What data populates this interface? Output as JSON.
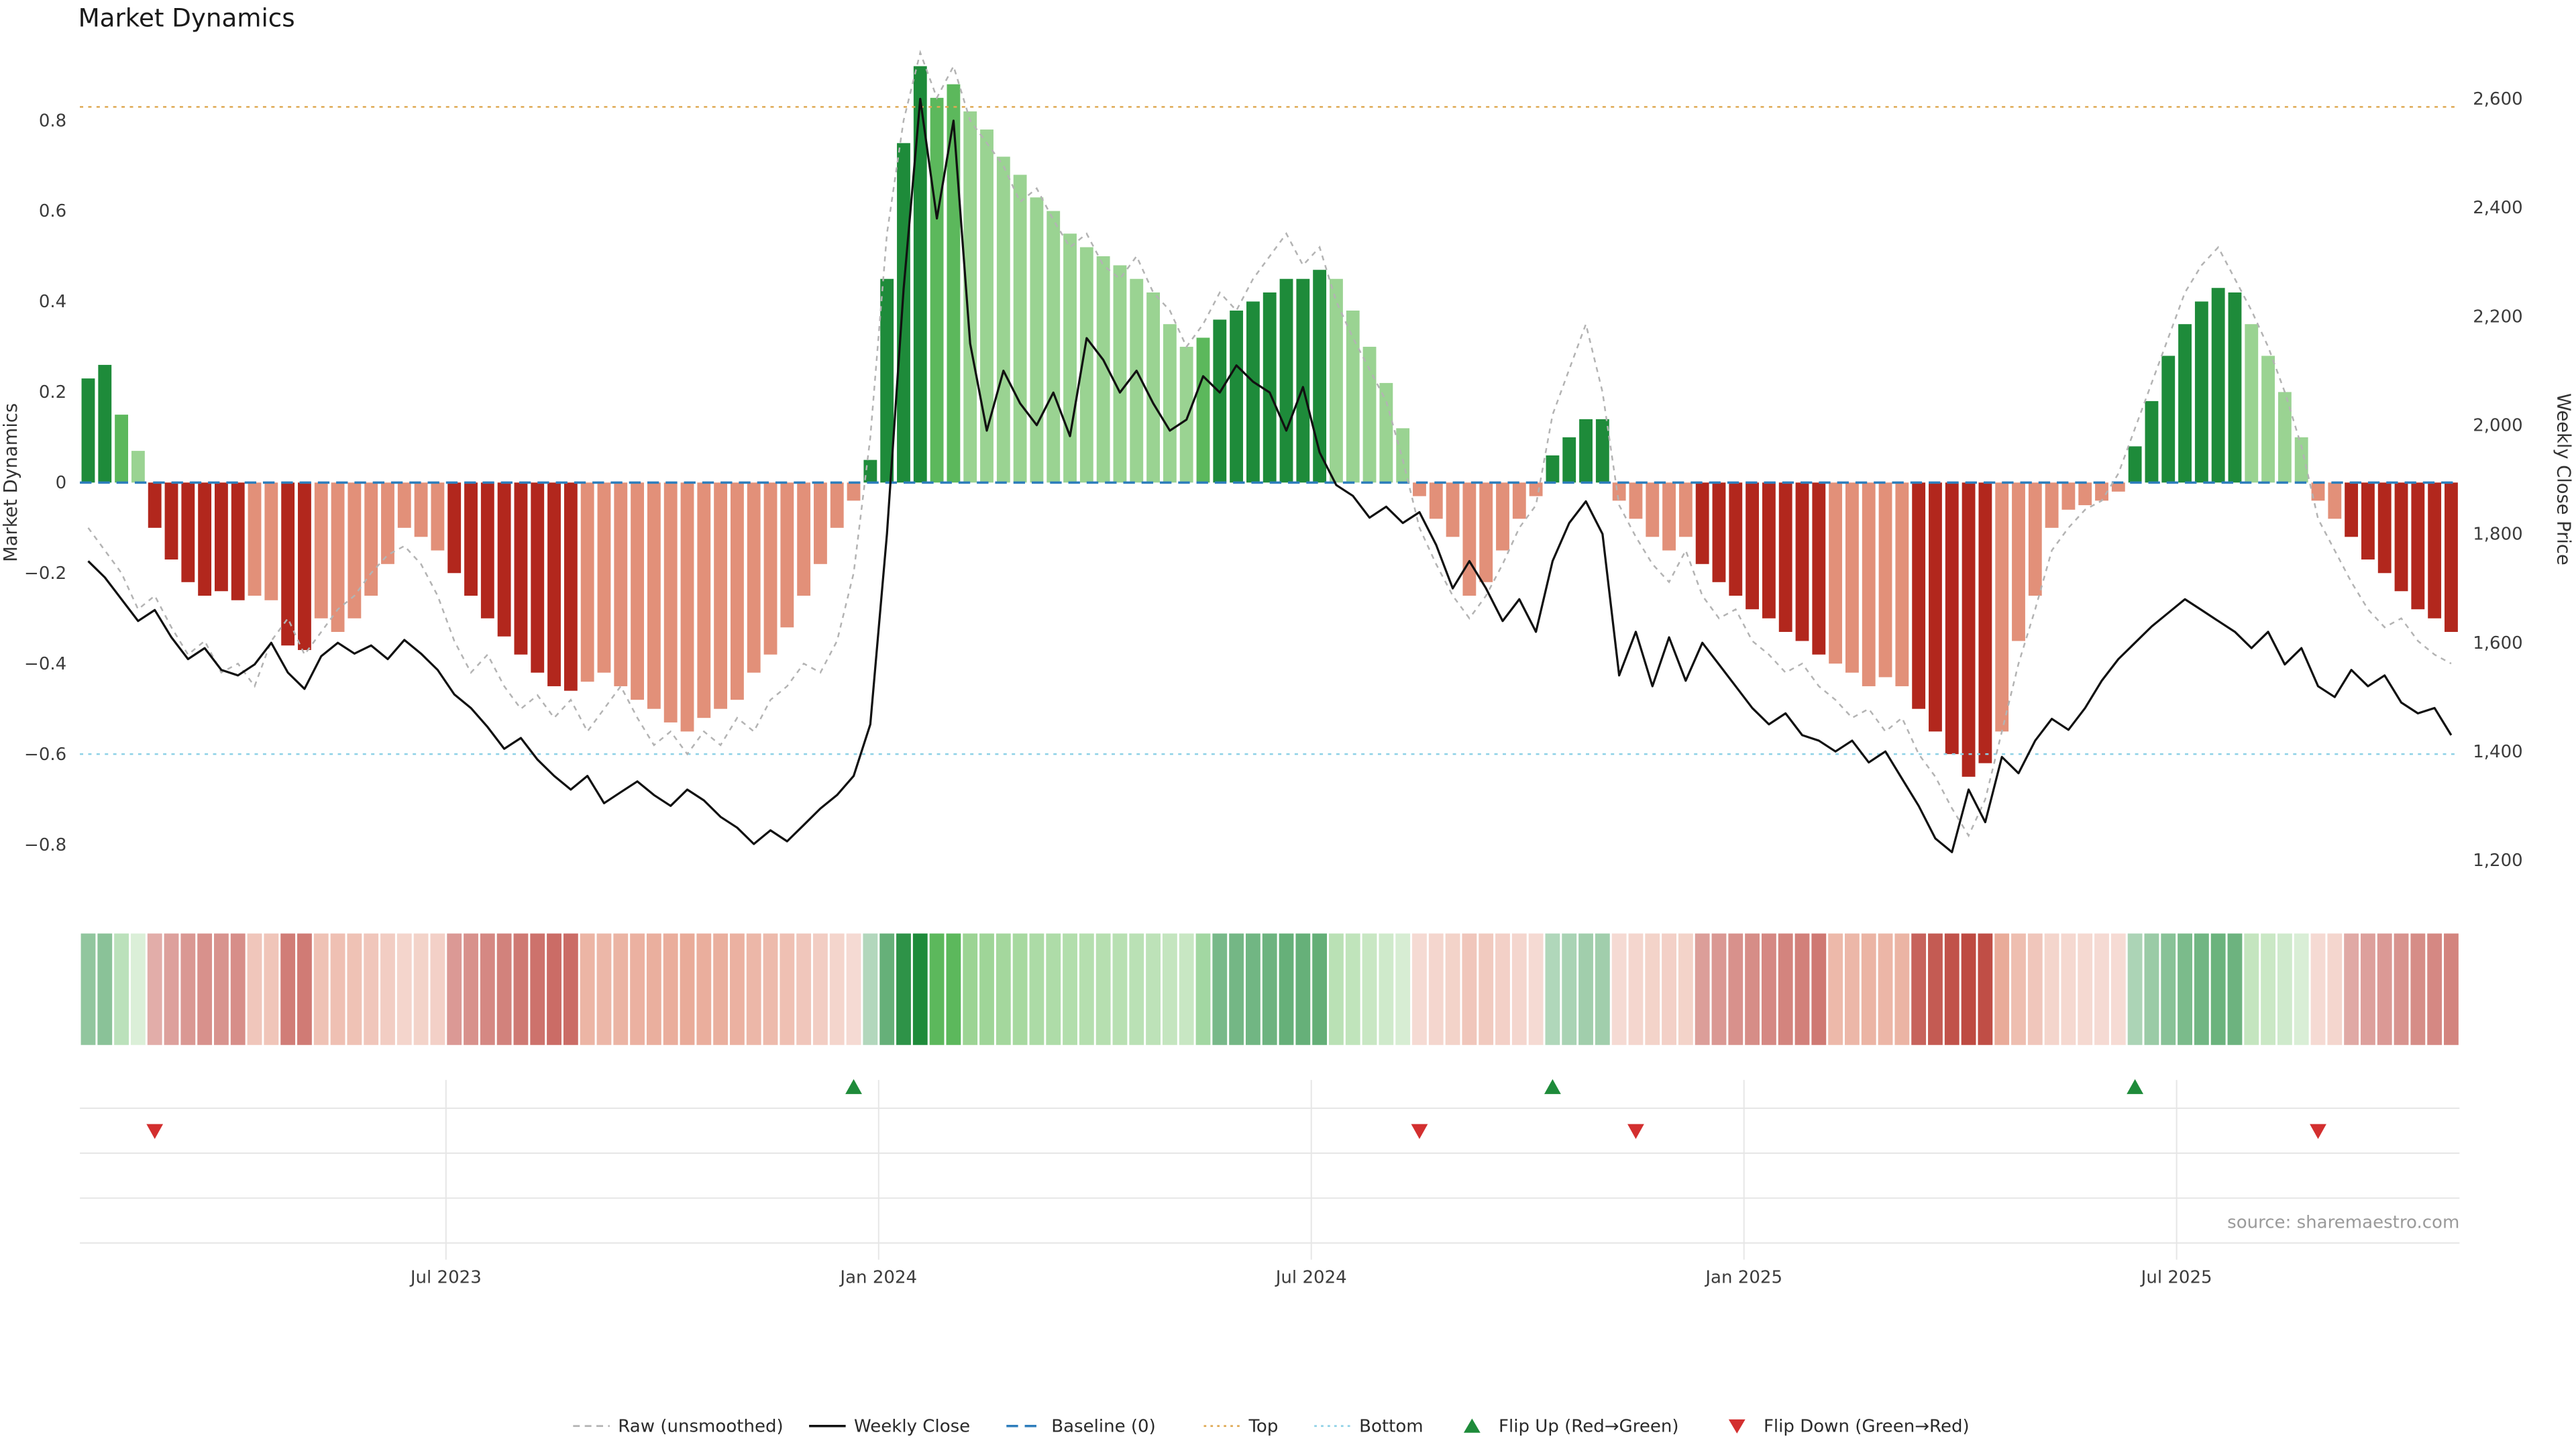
{
  "title": "Market Dynamics",
  "source": "source: sharemaestro.com",
  "axes": {
    "left_label": "Market Dynamics",
    "right_label": "Weekly Close Price",
    "left_ticks": [
      0.8,
      0.6,
      0.4,
      0.2,
      0,
      -0.2,
      -0.4,
      -0.6,
      -0.8
    ],
    "right_ticks": [
      2600,
      2400,
      2200,
      2000,
      1800,
      1600,
      1400,
      1200
    ],
    "left_range": [
      -0.95,
      0.95
    ],
    "right_range": [
      1150,
      2650
    ]
  },
  "colors": {
    "raw": "#b3b3b3",
    "close": "#111111",
    "baseline": "#2e7ebc",
    "top": "#dfa953",
    "bottom": "#8ed1e6",
    "flip_up": "#1e8b3a",
    "flip_down": "#d32f2f",
    "grid": "#e6e6e6",
    "tones": {
      "dg": "#1e8b3a",
      "mg": "#5cb85c",
      "lg": "#9ad392",
      "dr": "#b2271d",
      "sr": "#e29079"
    }
  },
  "legend": [
    {
      "type": "dash-gray",
      "label": "Raw (unsmoothed)"
    },
    {
      "type": "solid-black",
      "label": "Weekly Close"
    },
    {
      "type": "dash-blue",
      "label": "Baseline (0)"
    },
    {
      "type": "dot-orange",
      "label": "Top"
    },
    {
      "type": "dot-cyan",
      "label": "Bottom"
    },
    {
      "type": "tri-up-green",
      "label": "Flip Up (Red→Green)"
    },
    {
      "type": "tri-down-red",
      "label": "Flip Down (Green→Red)"
    }
  ],
  "chart_data": {
    "type": "bar",
    "title": "Market Dynamics",
    "xlabel": "",
    "ylabel_left": "Market Dynamics",
    "ylabel_right": "Weekly Close Price",
    "frequency": "weekly",
    "xticks": [
      {
        "i": 21.5,
        "label": "Jul 2023"
      },
      {
        "i": 47.5,
        "label": "Jan 2024"
      },
      {
        "i": 73.5,
        "label": "Jul 2024"
      },
      {
        "i": 99.5,
        "label": "Jan 2025"
      },
      {
        "i": 125.5,
        "label": "Jul 2025"
      }
    ],
    "reference_lines": {
      "baseline": 0,
      "top": 0.83,
      "bottom": -0.6
    },
    "flip_up_indices": [
      46,
      88,
      123
    ],
    "flip_down_indices": [
      4,
      80,
      93,
      134
    ],
    "osc": [
      0.23,
      0.26,
      0.15,
      0.07,
      -0.1,
      -0.17,
      -0.22,
      -0.25,
      -0.24,
      -0.26,
      -0.25,
      -0.26,
      -0.36,
      -0.37,
      -0.3,
      -0.33,
      -0.3,
      -0.25,
      -0.18,
      -0.1,
      -0.12,
      -0.15,
      -0.2,
      -0.25,
      -0.3,
      -0.34,
      -0.38,
      -0.42,
      -0.45,
      -0.46,
      -0.44,
      -0.42,
      -0.45,
      -0.48,
      -0.5,
      -0.53,
      -0.55,
      -0.52,
      -0.5,
      -0.48,
      -0.42,
      -0.38,
      -0.32,
      -0.25,
      -0.18,
      -0.1,
      -0.04,
      0.05,
      0.45,
      0.75,
      0.92,
      0.85,
      0.88,
      0.82,
      0.78,
      0.72,
      0.68,
      0.63,
      0.6,
      0.55,
      0.52,
      0.5,
      0.48,
      0.45,
      0.42,
      0.35,
      0.3,
      0.32,
      0.36,
      0.38,
      0.4,
      0.42,
      0.45,
      0.45,
      0.47,
      0.45,
      0.38,
      0.3,
      0.22,
      0.12,
      -0.03,
      -0.08,
      -0.12,
      -0.25,
      -0.22,
      -0.15,
      -0.08,
      -0.03,
      0.06,
      0.1,
      0.14,
      0.14,
      -0.04,
      -0.08,
      -0.12,
      -0.15,
      -0.12,
      -0.18,
      -0.22,
      -0.25,
      -0.28,
      -0.3,
      -0.33,
      -0.35,
      -0.38,
      -0.4,
      -0.42,
      -0.45,
      -0.43,
      -0.45,
      -0.5,
      -0.55,
      -0.6,
      -0.65,
      -0.62,
      -0.55,
      -0.35,
      -0.25,
      -0.1,
      -0.06,
      -0.05,
      -0.04,
      -0.02,
      0.08,
      0.18,
      0.28,
      0.35,
      0.4,
      0.43,
      0.42,
      0.35,
      0.28,
      0.2,
      0.1,
      -0.04,
      -0.08,
      -0.12,
      -0.17,
      -0.2,
      -0.24,
      -0.28,
      -0.3,
      -0.33
    ],
    "tones": [
      "dg",
      "dg",
      "mg",
      "lg",
      "dr",
      "dr",
      "dr",
      "dr",
      "dr",
      "dr",
      "sr",
      "sr",
      "dr",
      "dr",
      "sr",
      "sr",
      "sr",
      "sr",
      "sr",
      "sr",
      "sr",
      "sr",
      "dr",
      "dr",
      "dr",
      "dr",
      "dr",
      "dr",
      "dr",
      "dr",
      "sr",
      "sr",
      "sr",
      "sr",
      "sr",
      "sr",
      "sr",
      "sr",
      "sr",
      "sr",
      "sr",
      "sr",
      "sr",
      "sr",
      "sr",
      "sr",
      "sr",
      "dg",
      "dg",
      "dg",
      "dg",
      "mg",
      "mg",
      "lg",
      "lg",
      "lg",
      "lg",
      "lg",
      "lg",
      "lg",
      "lg",
      "lg",
      "lg",
      "lg",
      "lg",
      "lg",
      "lg",
      "mg",
      "dg",
      "dg",
      "dg",
      "dg",
      "dg",
      "dg",
      "dg",
      "lg",
      "lg",
      "lg",
      "lg",
      "lg",
      "sr",
      "sr",
      "sr",
      "sr",
      "sr",
      "sr",
      "sr",
      "sr",
      "dg",
      "dg",
      "dg",
      "dg",
      "sr",
      "sr",
      "sr",
      "sr",
      "sr",
      "dr",
      "dr",
      "dr",
      "dr",
      "dr",
      "dr",
      "dr",
      "dr",
      "sr",
      "sr",
      "sr",
      "sr",
      "sr",
      "dr",
      "dr",
      "dr",
      "dr",
      "dr",
      "sr",
      "sr",
      "sr",
      "sr",
      "sr",
      "sr",
      "sr",
      "sr",
      "dg",
      "dg",
      "dg",
      "dg",
      "dg",
      "dg",
      "dg",
      "lg",
      "lg",
      "lg",
      "lg",
      "sr",
      "sr",
      "dr",
      "dr",
      "dr",
      "dr",
      "dr",
      "dr",
      "dr"
    ],
    "raw": [
      -0.1,
      -0.15,
      -0.2,
      -0.28,
      -0.25,
      -0.32,
      -0.38,
      -0.35,
      -0.42,
      -0.4,
      -0.45,
      -0.35,
      -0.3,
      -0.38,
      -0.33,
      -0.28,
      -0.25,
      -0.2,
      -0.16,
      -0.14,
      -0.18,
      -0.25,
      -0.35,
      -0.42,
      -0.38,
      -0.45,
      -0.5,
      -0.47,
      -0.52,
      -0.48,
      -0.55,
      -0.5,
      -0.45,
      -0.52,
      -0.58,
      -0.55,
      -0.6,
      -0.55,
      -0.58,
      -0.52,
      -0.55,
      -0.48,
      -0.45,
      -0.4,
      -0.42,
      -0.35,
      -0.2,
      0.1,
      0.55,
      0.8,
      0.95,
      0.85,
      0.92,
      0.8,
      0.75,
      0.7,
      0.62,
      0.65,
      0.58,
      0.52,
      0.55,
      0.48,
      0.45,
      0.5,
      0.42,
      0.38,
      0.3,
      0.35,
      0.42,
      0.38,
      0.45,
      0.5,
      0.55,
      0.48,
      0.52,
      0.4,
      0.32,
      0.25,
      0.18,
      0.05,
      -0.1,
      -0.18,
      -0.25,
      -0.3,
      -0.25,
      -0.18,
      -0.1,
      -0.05,
      0.15,
      0.25,
      0.35,
      0.2,
      -0.05,
      -0.12,
      -0.18,
      -0.22,
      -0.15,
      -0.25,
      -0.3,
      -0.28,
      -0.35,
      -0.38,
      -0.42,
      -0.4,
      -0.45,
      -0.48,
      -0.52,
      -0.5,
      -0.55,
      -0.52,
      -0.6,
      -0.65,
      -0.72,
      -0.78,
      -0.7,
      -0.55,
      -0.4,
      -0.28,
      -0.15,
      -0.1,
      -0.06,
      -0.04,
      0.02,
      0.12,
      0.22,
      0.32,
      0.42,
      0.48,
      0.52,
      0.45,
      0.38,
      0.3,
      0.2,
      0.08,
      -0.08,
      -0.15,
      -0.22,
      -0.28,
      -0.32,
      -0.3,
      -0.35,
      -0.38,
      -0.4
    ],
    "close": [
      1750,
      1720,
      1680,
      1640,
      1660,
      1610,
      1570,
      1590,
      1550,
      1540,
      1560,
      1600,
      1545,
      1515,
      1575,
      1600,
      1580,
      1595,
      1570,
      1605,
      1580,
      1550,
      1505,
      1480,
      1445,
      1405,
      1425,
      1385,
      1355,
      1330,
      1355,
      1305,
      1325,
      1345,
      1320,
      1300,
      1330,
      1310,
      1280,
      1260,
      1230,
      1255,
      1235,
      1265,
      1295,
      1320,
      1355,
      1450,
      1800,
      2250,
      2600,
      2380,
      2560,
      2150,
      1990,
      2100,
      2040,
      2000,
      2060,
      1980,
      2160,
      2120,
      2060,
      2100,
      2040,
      1990,
      2010,
      2090,
      2060,
      2110,
      2080,
      2060,
      1990,
      2070,
      1950,
      1890,
      1870,
      1830,
      1850,
      1820,
      1840,
      1780,
      1700,
      1750,
      1700,
      1640,
      1680,
      1620,
      1750,
      1820,
      1860,
      1800,
      1540,
      1620,
      1520,
      1610,
      1530,
      1600,
      1560,
      1520,
      1480,
      1450,
      1470,
      1430,
      1420,
      1400,
      1420,
      1380,
      1400,
      1350,
      1300,
      1240,
      1215,
      1330,
      1270,
      1390,
      1360,
      1420,
      1460,
      1440,
      1480,
      1530,
      1570,
      1600,
      1630,
      1655,
      1680,
      1660,
      1640,
      1620,
      1590,
      1620,
      1560,
      1590,
      1520,
      1500,
      1550,
      1520,
      1540,
      1490,
      1470,
      1480,
      1430
    ]
  }
}
